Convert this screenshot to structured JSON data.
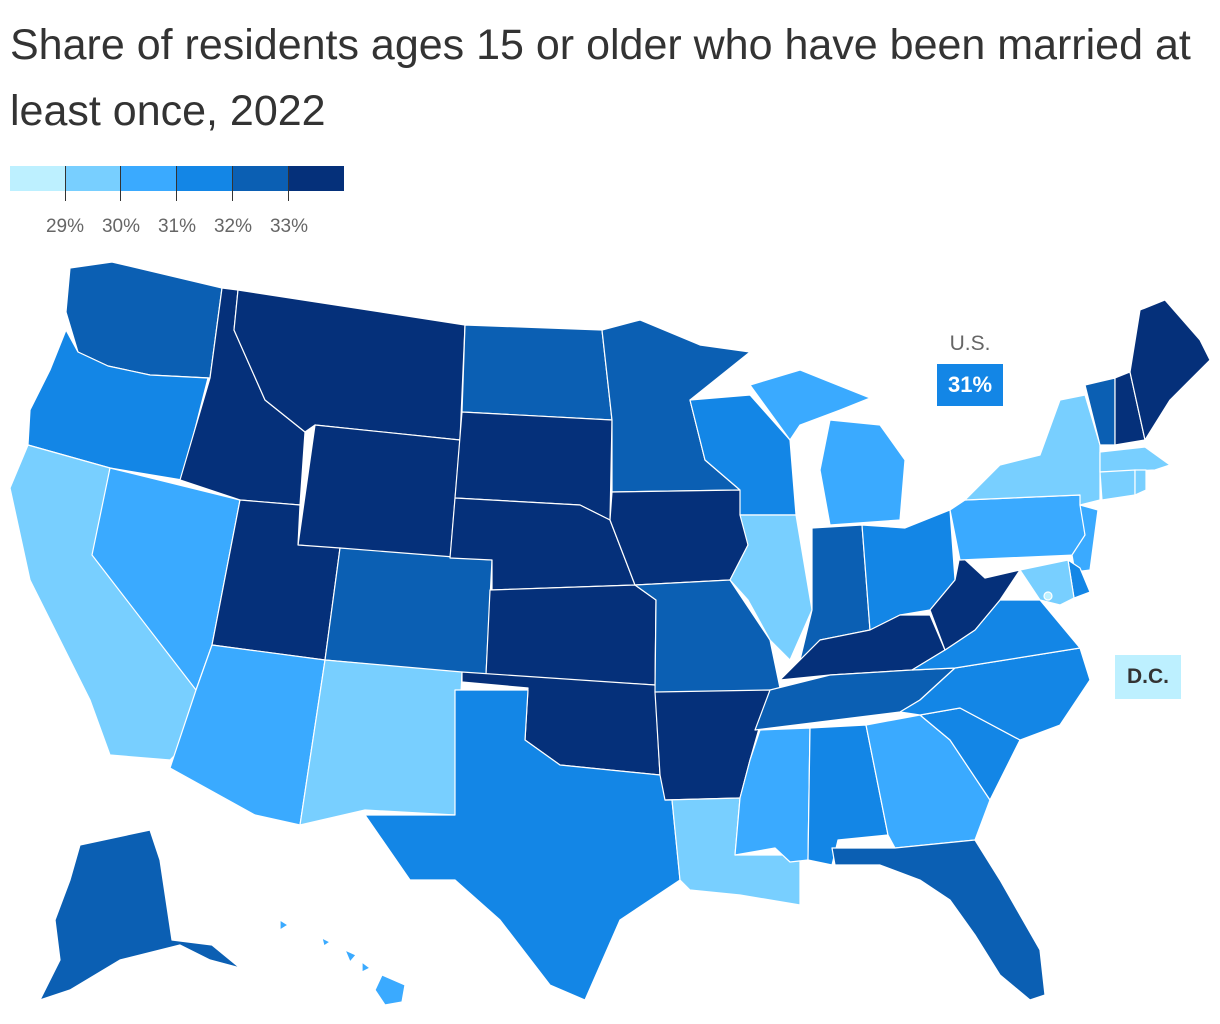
{
  "title": "Share of residents ages 15 or older who have been married at least once, 2022",
  "legend": {
    "colors": [
      "#bdf0ff",
      "#78cfff",
      "#3aaaff",
      "#1386e6",
      "#0b5fb3",
      "#05307a"
    ],
    "thresholds": [
      "29%",
      "30%",
      "31%",
      "32%",
      "33%"
    ]
  },
  "map_data": {
    "type": "choropleth",
    "region": "United States",
    "bins": [
      {
        "range": "below 29%",
        "color": "#bdf0ff"
      },
      {
        "range": "29% to 30%",
        "color": "#78cfff"
      },
      {
        "range": "30% to 31%",
        "color": "#3aaaff"
      },
      {
        "range": "31% to 32%",
        "color": "#1386e6"
      },
      {
        "range": "32% to 33%",
        "color": "#0b5fb3"
      },
      {
        "range": "33% and above",
        "color": "#05307a"
      }
    ],
    "states": [
      {
        "code": "WA",
        "bin": 4
      },
      {
        "code": "OR",
        "bin": 3
      },
      {
        "code": "CA",
        "bin": 1
      },
      {
        "code": "NV",
        "bin": 2
      },
      {
        "code": "ID",
        "bin": 5
      },
      {
        "code": "MT",
        "bin": 5
      },
      {
        "code": "WY",
        "bin": 5
      },
      {
        "code": "UT",
        "bin": 5
      },
      {
        "code": "AZ",
        "bin": 2
      },
      {
        "code": "CO",
        "bin": 4
      },
      {
        "code": "NM",
        "bin": 1
      },
      {
        "code": "ND",
        "bin": 4
      },
      {
        "code": "SD",
        "bin": 5
      },
      {
        "code": "NE",
        "bin": 5
      },
      {
        "code": "KS",
        "bin": 5
      },
      {
        "code": "OK",
        "bin": 5
      },
      {
        "code": "TX",
        "bin": 3
      },
      {
        "code": "MN",
        "bin": 4
      },
      {
        "code": "IA",
        "bin": 5
      },
      {
        "code": "MO",
        "bin": 4
      },
      {
        "code": "AR",
        "bin": 5
      },
      {
        "code": "LA",
        "bin": 1
      },
      {
        "code": "WI",
        "bin": 3
      },
      {
        "code": "IL",
        "bin": 1
      },
      {
        "code": "MI",
        "bin": 2
      },
      {
        "code": "IN",
        "bin": 4
      },
      {
        "code": "OH",
        "bin": 3
      },
      {
        "code": "KY",
        "bin": 5
      },
      {
        "code": "TN",
        "bin": 4
      },
      {
        "code": "MS",
        "bin": 2
      },
      {
        "code": "AL",
        "bin": 3
      },
      {
        "code": "GA",
        "bin": 2
      },
      {
        "code": "FL",
        "bin": 4
      },
      {
        "code": "SC",
        "bin": 3
      },
      {
        "code": "NC",
        "bin": 3
      },
      {
        "code": "VA",
        "bin": 3
      },
      {
        "code": "WV",
        "bin": 5
      },
      {
        "code": "PA",
        "bin": 2
      },
      {
        "code": "NY",
        "bin": 1
      },
      {
        "code": "VT",
        "bin": 4
      },
      {
        "code": "NH",
        "bin": 5
      },
      {
        "code": "ME",
        "bin": 5
      },
      {
        "code": "MA",
        "bin": 1
      },
      {
        "code": "CT",
        "bin": 1
      },
      {
        "code": "RI",
        "bin": 1
      },
      {
        "code": "NJ",
        "bin": 2
      },
      {
        "code": "DE",
        "bin": 3
      },
      {
        "code": "MD",
        "bin": 1
      },
      {
        "code": "DC",
        "bin": 0
      },
      {
        "code": "AK",
        "bin": 4
      },
      {
        "code": "HI",
        "bin": 2
      }
    ]
  },
  "callouts": {
    "us_label": "U.S.",
    "us_value": "31%",
    "us_color": "#1386e6",
    "dc_label": "D.C.",
    "dc_color": "#bdf0ff"
  }
}
